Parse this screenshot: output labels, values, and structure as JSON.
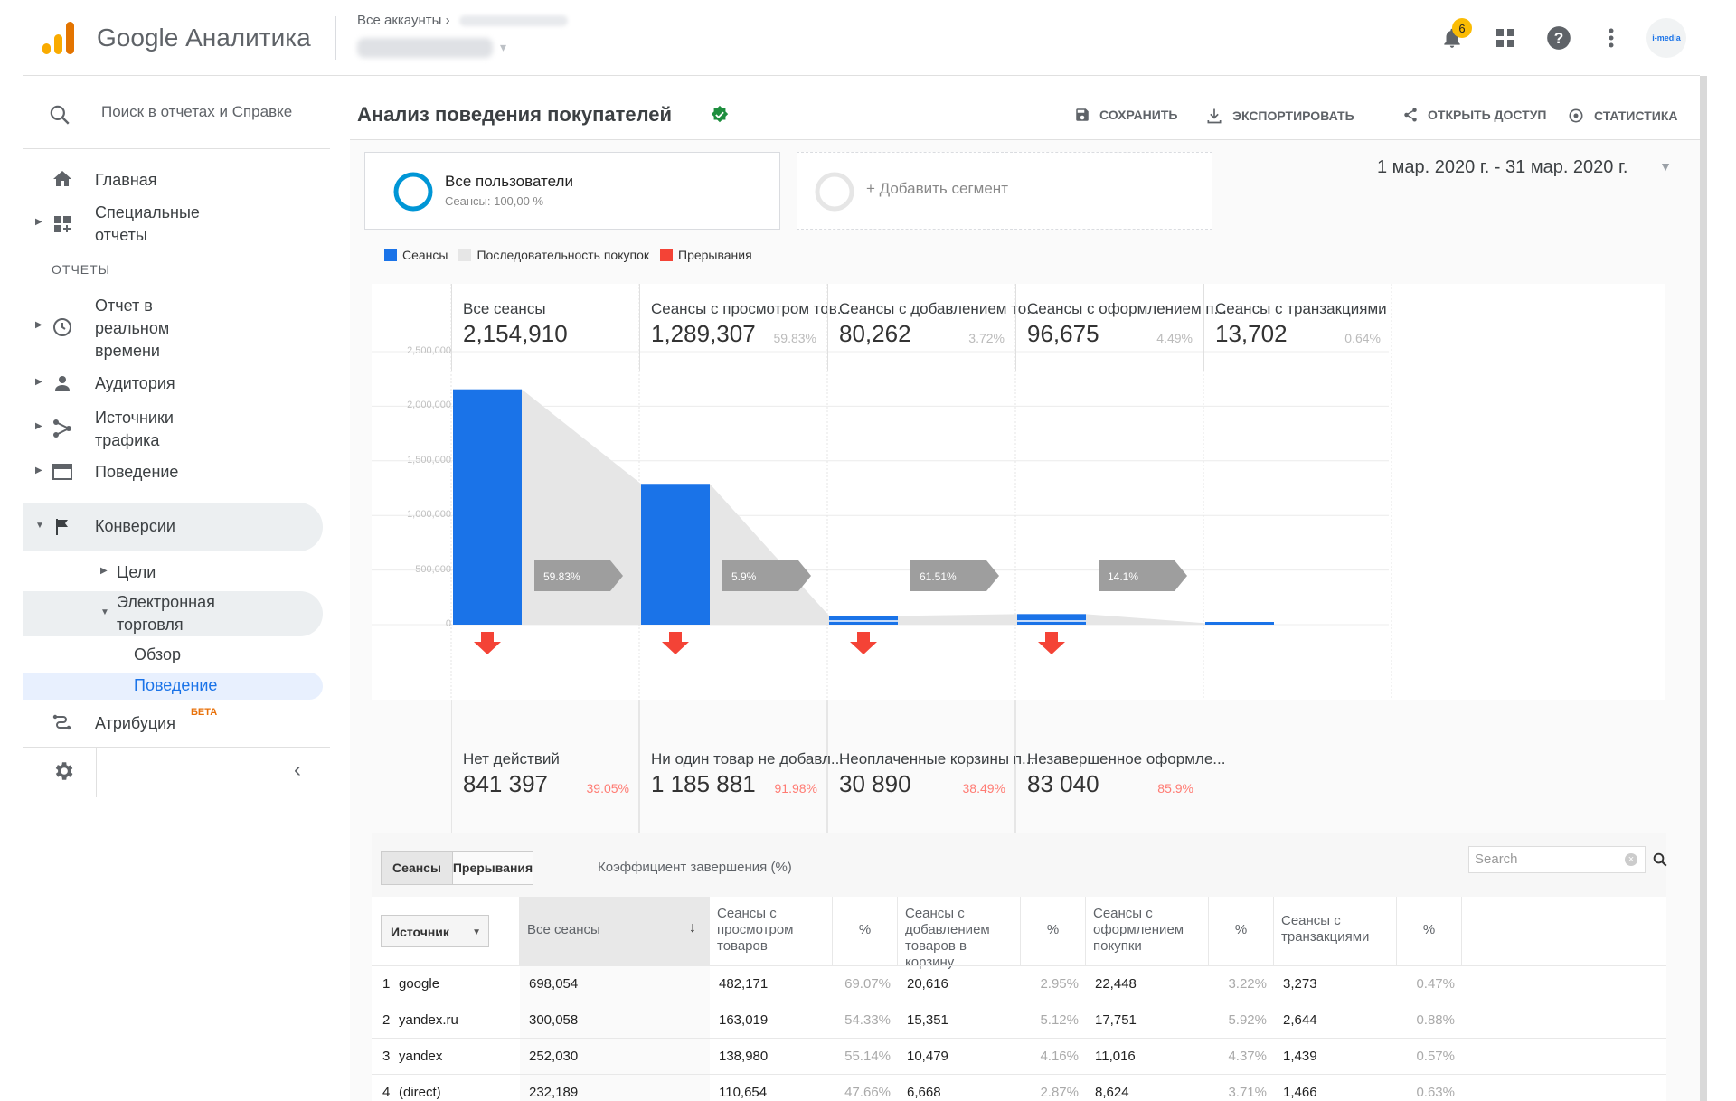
{
  "header": {
    "app_title": "Google Аналитика",
    "crumb": "Все аккаунты",
    "notification_count": "6",
    "avatar_text": "i-media"
  },
  "sidebar": {
    "search_placeholder": "Поиск в отчетах и Справке",
    "home": "Главная",
    "custom_reports": "Специальные отчеты",
    "section_reports": "ОТЧЕТЫ",
    "realtime": "Отчет в реальном времени",
    "audience": "Аудитория",
    "acquisition": "Источники трафика",
    "behavior": "Поведение",
    "conversions": "Конверсии",
    "goals": "Цели",
    "ecommerce": "Электронная торговля",
    "overview": "Обзор",
    "ecom_behavior": "Поведение",
    "attribution": "Атрибуция",
    "beta": "БЕТА"
  },
  "main": {
    "title": "Анализ поведения покупателей",
    "toolbar": {
      "save": "СОХРАНИТЬ",
      "export": "ЭКСПОРТИРОВАТЬ",
      "share": "ОТКРЫТЬ ДОСТУП",
      "insights": "СТАТИСТИКА"
    },
    "segment": {
      "name": "Все пользователи",
      "sub": "Сеансы: 100,00 %"
    },
    "add_segment": "+ Добавить сегмент",
    "date_range": "1 мар. 2020 г. - 31 мар. 2020 г."
  },
  "legend": [
    "Сеансы",
    "Последовательность покупок",
    "Прерывания"
  ],
  "colors": {
    "sessions": "#1a73e8",
    "sequence": "#e6e6e6",
    "abandon": "#f44336",
    "arrow": "#9e9e9e"
  },
  "chart_data": {
    "type": "bar",
    "ylim": [
      0,
      2500000
    ],
    "yticks": [
      "2,500,000",
      "2,000,000",
      "1,500,000",
      "1,000,000",
      "500,000",
      "0"
    ],
    "stages": [
      {
        "label": "Все сеансы",
        "value_text": "2,154,910",
        "value": 2154910,
        "pct": ""
      },
      {
        "label": "Сеансы с просмотром тов...",
        "value_text": "1,289,307",
        "value": 1289307,
        "pct": "59.83%"
      },
      {
        "label": "Сеансы с добавлением то...",
        "value_text": "80,262",
        "value": 80262,
        "pct": "3.72%"
      },
      {
        "label": "Сеансы с оформлением п...",
        "value_text": "96,675",
        "value": 96675,
        "pct": "4.49%"
      },
      {
        "label": "Сеансы с транзакциями",
        "value_text": "13,702",
        "value": 13702,
        "pct": "0.64%"
      }
    ],
    "transitions": [
      "59.83%",
      "5.9%",
      "61.51%",
      "14.1%"
    ],
    "abandonments": [
      {
        "label": "Нет действий",
        "value": "841 397",
        "pct": "39.05%"
      },
      {
        "label": "Ни один товар не добавл...",
        "value": "1 185 881",
        "pct": "91.98%"
      },
      {
        "label": "Неоплаченные корзины п...",
        "value": "30 890",
        "pct": "38.49%"
      },
      {
        "label": "Незавершенное оформле...",
        "value": "83 040",
        "pct": "85.9%"
      }
    ]
  },
  "table": {
    "tabs": [
      "Сеансы",
      "Прерывания"
    ],
    "rate_label": "Коэффициент завершения (%)",
    "search_placeholder": "Search",
    "dimension": "Источник",
    "headers": [
      "Все сеансы",
      "Сеансы с просмотром товаров",
      "%",
      "Сеансы с добавлением товаров в корзину",
      "%",
      "Сеансы с оформлением покупки",
      "%",
      "Сеансы с транзакциями",
      "%"
    ],
    "rows": [
      {
        "n": "1",
        "src": "google",
        "all": "698,054",
        "v": "482,171",
        "vp": "69.07%",
        "a": "20,616",
        "ap": "2.95%",
        "c": "22,448",
        "cp": "3.22%",
        "t": "3,273",
        "tp": "0.47%"
      },
      {
        "n": "2",
        "src": "yandex.ru",
        "all": "300,058",
        "v": "163,019",
        "vp": "54.33%",
        "a": "15,351",
        "ap": "5.12%",
        "c": "17,751",
        "cp": "5.92%",
        "t": "2,644",
        "tp": "0.88%"
      },
      {
        "n": "3",
        "src": "yandex",
        "all": "252,030",
        "v": "138,980",
        "vp": "55.14%",
        "a": "10,479",
        "ap": "4.16%",
        "c": "11,016",
        "cp": "4.37%",
        "t": "1,439",
        "tp": "0.57%"
      },
      {
        "n": "4",
        "src": "(direct)",
        "all": "232,189",
        "v": "110,654",
        "vp": "47.66%",
        "a": "6,668",
        "ap": "2.87%",
        "c": "8,624",
        "cp": "3.71%",
        "t": "1,466",
        "tp": "0.63%"
      }
    ]
  }
}
